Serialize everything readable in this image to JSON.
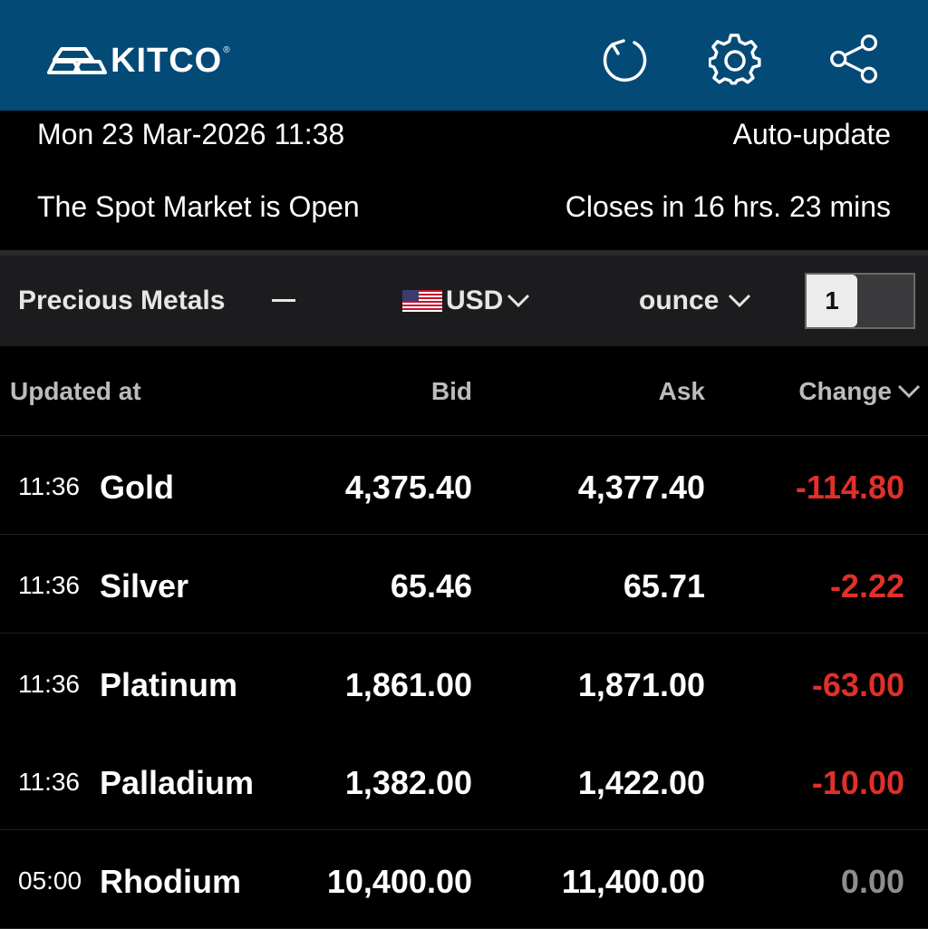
{
  "header": {
    "brand": "KITCO",
    "brand_mark": "®",
    "icons": [
      "refresh-icon",
      "gear-icon",
      "share-icon"
    ]
  },
  "status": {
    "datetime": "Mon 23 Mar-2026 11:38",
    "auto_update": "Auto-update",
    "market": "The Spot Market is Open",
    "closes": "Closes in 16 hrs. 23 mins"
  },
  "selectors": {
    "category": "Precious Metals",
    "currency": "USD",
    "unit": "ounce",
    "quantity": "1"
  },
  "table": {
    "headers": {
      "updated": "Updated at",
      "bid": "Bid",
      "ask": "Ask",
      "change": "Change"
    },
    "rows": [
      {
        "time": "11:36",
        "name": "Gold",
        "bid": "4,375.40",
        "ask": "4,377.40",
        "change": "-114.80",
        "change_color": "#e0302a"
      },
      {
        "time": "11:36",
        "name": "Silver",
        "bid": "65.46",
        "ask": "65.71",
        "change": "-2.22",
        "change_color": "#e0302a"
      },
      {
        "time": "11:36",
        "name": "Platinum",
        "bid": "1,861.00",
        "ask": "1,871.00",
        "change": "-63.00",
        "change_color": "#e0302a"
      },
      {
        "time": "11:36",
        "name": "Palladium",
        "bid": "1,382.00",
        "ask": "1,422.00",
        "change": "-10.00",
        "change_color": "#e0302a"
      },
      {
        "time": "05:00",
        "name": "Rhodium",
        "bid": "10,400.00",
        "ask": "11,400.00",
        "change": "0.00",
        "change_color": "#8e8e8e"
      }
    ]
  },
  "colors": {
    "header_bg": "#044a77",
    "negative": "#e0302a",
    "neutral": "#8e8e8e"
  }
}
